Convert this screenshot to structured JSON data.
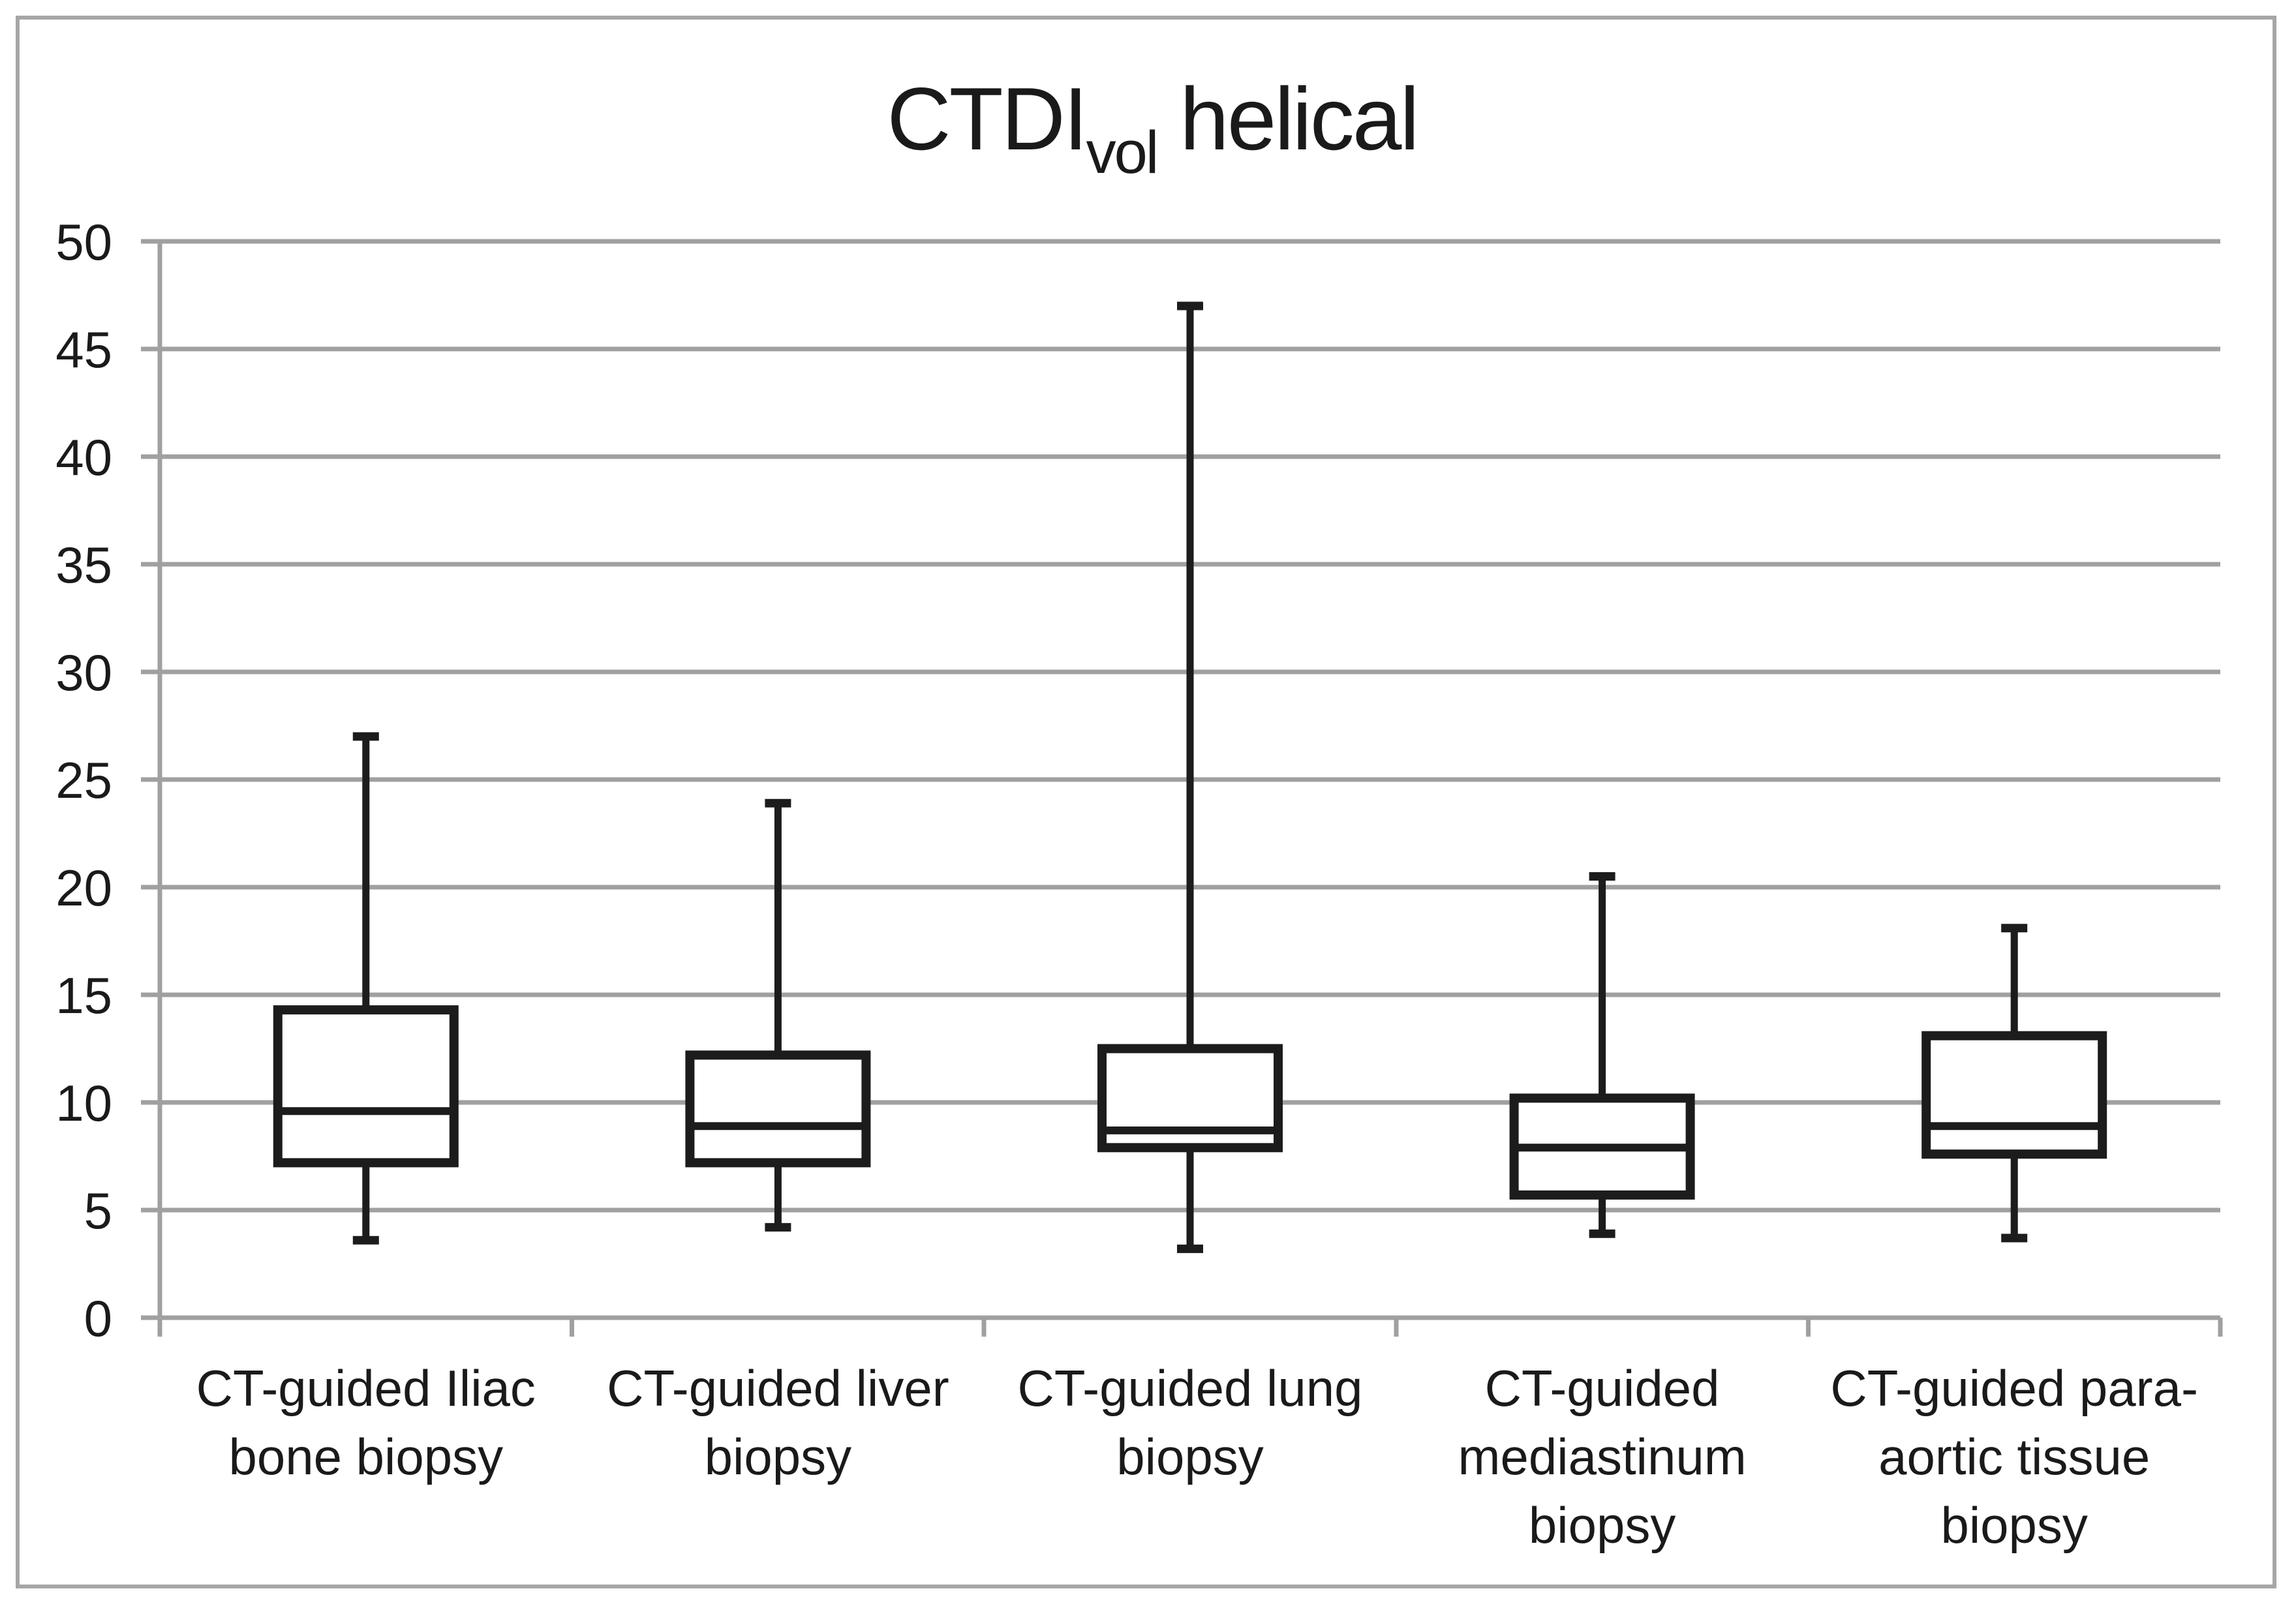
{
  "page": {
    "background": "#ffffff",
    "border_color": "#a6a6a6"
  },
  "title": {
    "main": "CTDI",
    "subscript": "vol",
    "suffix": " helical"
  },
  "chart_data": {
    "type": "boxplot",
    "title": "CTDI_vol helical",
    "xlabel": "",
    "ylabel": "",
    "ylim": [
      0,
      50
    ],
    "ytick_step": 5,
    "yticks": [
      0,
      5,
      10,
      15,
      20,
      25,
      30,
      35,
      40,
      45,
      50
    ],
    "grid": true,
    "legend": "none",
    "categories": [
      "CT-guided Iliac bone biopsy",
      "CT-guided liver biopsy",
      "CT-guided lung biopsy",
      "CT-guided mediastinum biopsy",
      "CT-guided para-aortic tissue biopsy"
    ],
    "category_label_lines": [
      [
        "CT-guided Iliac",
        "bone biopsy"
      ],
      [
        "CT-guided liver",
        "biopsy"
      ],
      [
        "CT-guided lung",
        "biopsy"
      ],
      [
        "CT-guided",
        "mediastinum",
        "biopsy"
      ],
      [
        "CT-guided para-",
        "aortic tissue",
        "biopsy"
      ]
    ],
    "series": [
      {
        "name": "CT-guided Iliac bone biopsy",
        "whisker_low": 3.6,
        "q1": 7.2,
        "median": 9.6,
        "q3": 14.3,
        "whisker_high": 27.0
      },
      {
        "name": "CT-guided liver biopsy",
        "whisker_low": 4.2,
        "q1": 7.2,
        "median": 8.9,
        "q3": 12.2,
        "whisker_high": 23.9
      },
      {
        "name": "CT-guided lung biopsy",
        "whisker_low": 3.2,
        "q1": 7.9,
        "median": 8.7,
        "q3": 12.5,
        "whisker_high": 47.0
      },
      {
        "name": "CT-guided mediastinum biopsy",
        "whisker_low": 3.9,
        "q1": 5.7,
        "median": 7.9,
        "q3": 10.2,
        "whisker_high": 20.5
      },
      {
        "name": "CT-guided para-aortic tissue biopsy",
        "whisker_low": 3.7,
        "q1": 7.6,
        "median": 8.9,
        "q3": 13.1,
        "whisker_high": 18.1
      }
    ],
    "colors": {
      "grid": "#a0a0a0",
      "axis": "#a0a0a0",
      "box_stroke": "#1c1c1c",
      "box_fill": "#ffffff",
      "text": "#1a1a1a"
    }
  }
}
